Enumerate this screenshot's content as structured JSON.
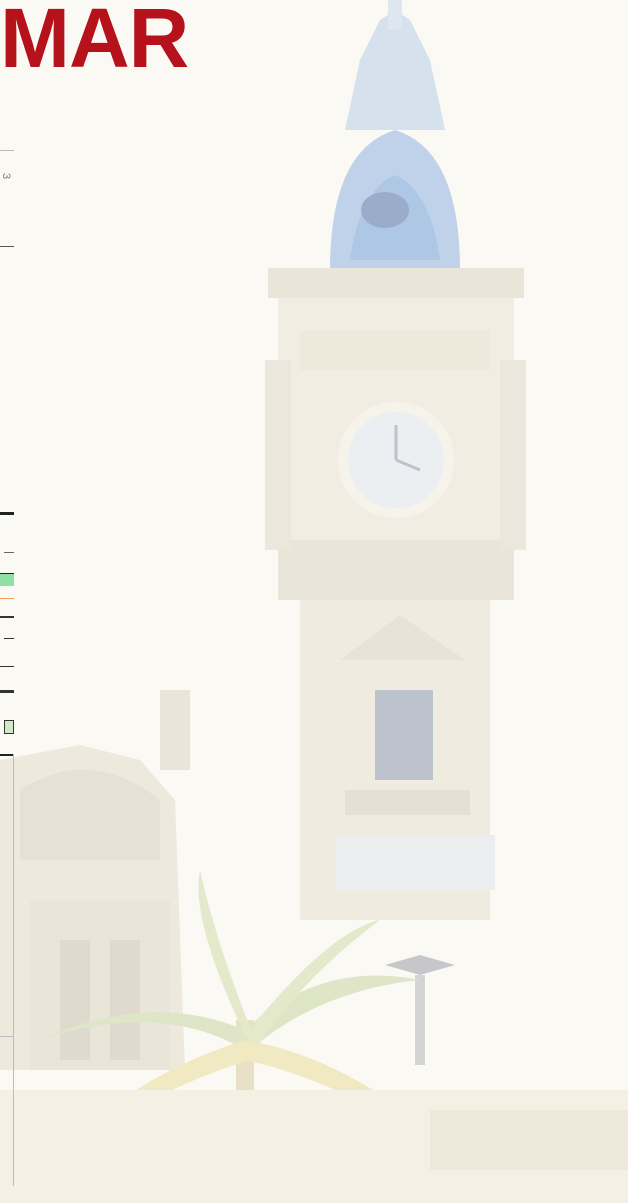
{
  "slide": {
    "title": "MAR",
    "title_color": "#b5121b",
    "page_background": "#fbf9f4"
  },
  "background_image": {
    "icon": "clock-tower-illustration-icon",
    "palette": {
      "stone": "#e9e3d2",
      "stone_dark": "#d6cfbd",
      "dome_blue": "#6f9fd8",
      "window_dark": "#8c98ad",
      "palm_green": "#c9d6a3",
      "palm_yellow": "#e8dc9a"
    }
  },
  "left_edge_fragment": {
    "glyph": "3",
    "accent_green": "#8fe0a6",
    "accent_orange": "#f0a060",
    "line_color": "#333333"
  }
}
